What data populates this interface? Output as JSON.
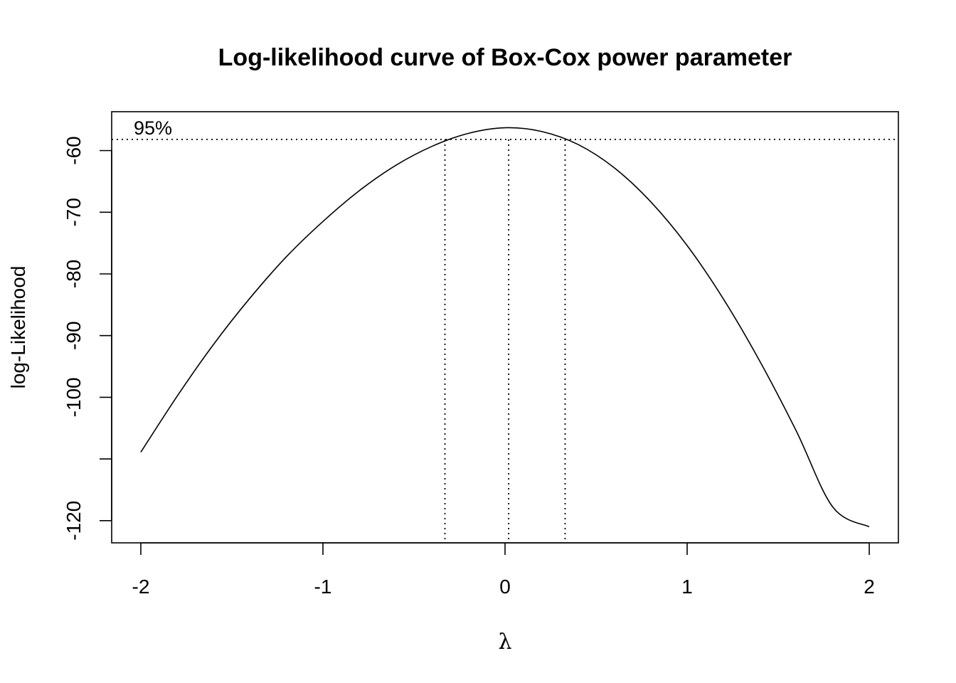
{
  "chart_data": {
    "type": "line",
    "title": "Log-likelihood curve of Box-Cox power parameter",
    "xlabel": "λ",
    "ylabel": "log-Likelihood",
    "xlim": [
      -2.16,
      2.16
    ],
    "ylim": [
      -123.6,
      -53.7
    ],
    "x_ticks": [
      -2,
      -1,
      0,
      1,
      2
    ],
    "x_tick_labels": [
      "-2",
      "-1",
      "0",
      "1",
      "2"
    ],
    "y_ticks": [
      -120,
      -110,
      -100,
      -90,
      -80,
      -70,
      -60
    ],
    "y_tick_labels": [
      "-120",
      "",
      "-100",
      "-90",
      "-80",
      "-70",
      "-60"
    ],
    "series": [
      {
        "x": [
          -2.0,
          -1.8,
          -1.6,
          -1.4,
          -1.2,
          -1.0,
          -0.8,
          -0.6,
          -0.4,
          -0.2,
          0.0,
          0.2,
          0.4,
          0.6,
          0.8,
          1.0,
          1.2,
          1.4,
          1.6,
          1.8,
          2.0
        ],
        "y": [
          -108.9,
          -99.8,
          -91.4,
          -83.9,
          -77.2,
          -71.5,
          -66.5,
          -62.4,
          -59.3,
          -57.2,
          -56.3,
          -56.9,
          -59.0,
          -62.8,
          -68.3,
          -75.4,
          -84.1,
          -94.2,
          -105.5,
          -117.8,
          -121.0
        ]
      }
    ],
    "ci_level_label": "95%",
    "ci_threshold_y": -58.2,
    "ci_lower": -0.33,
    "lambda_hat": 0.02,
    "ci_upper": 0.33,
    "grid": false
  }
}
